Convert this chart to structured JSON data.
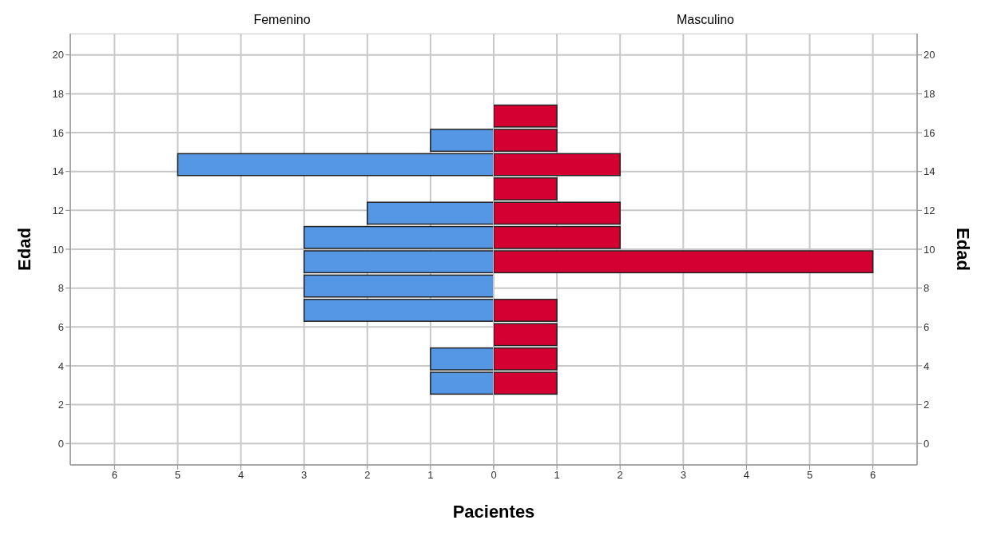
{
  "chart_data": [
    {
      "type": "histogram",
      "title": "Femenino",
      "xlabel": "Pacientes",
      "ylabel": "Edad",
      "orientation": "horizontal",
      "color": "#5596e5",
      "bins": [
        2.5,
        3.75,
        5,
        6.25,
        7.5,
        8.75,
        10,
        11.25,
        12.5,
        13.75,
        15,
        16.25,
        17.5
      ],
      "values": [
        1,
        1,
        0,
        3,
        3,
        3,
        3,
        2,
        0,
        5,
        1,
        0
      ],
      "xlim": [
        6.7,
        0
      ],
      "xticks": [
        6,
        5,
        4,
        3,
        2,
        1,
        {
          "value": 0,
          "label": null
        }
      ],
      "ylim": [
        -1.1,
        21.1
      ],
      "yticks": [
        0,
        2,
        4,
        6,
        8,
        10,
        12,
        14,
        16,
        18,
        20
      ],
      "grid": true
    },
    {
      "type": "histogram",
      "title": "Masculino",
      "ylabel": "Edad",
      "orientation": "horizontal",
      "color": "#d50032",
      "bins": [
        2.5,
        3.75,
        5,
        6.25,
        7.5,
        8.75,
        10,
        11.25,
        12.5,
        13.75,
        15,
        16.25,
        17.5
      ],
      "values": [
        1,
        1,
        1,
        1,
        0,
        6,
        2,
        2,
        1,
        2,
        1,
        1
      ],
      "xlim": [
        0,
        6.7
      ],
      "xticks": [
        0,
        1,
        2,
        3,
        4,
        5,
        6
      ],
      "ylim": [
        -1.1,
        21.1
      ],
      "yticks": [
        0,
        2,
        4,
        6,
        8,
        10,
        12,
        14,
        16,
        18,
        20
      ],
      "grid": true
    }
  ]
}
